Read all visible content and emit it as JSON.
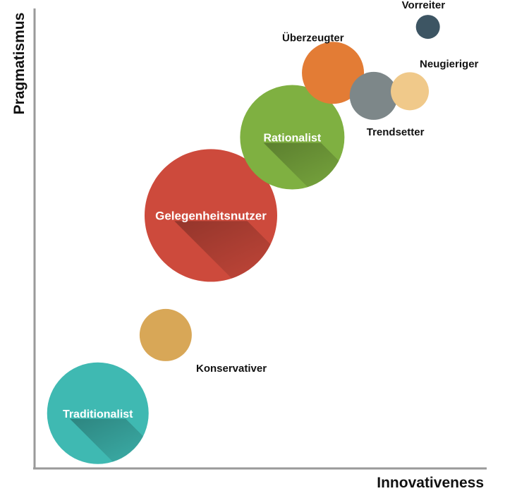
{
  "chart_data": {
    "type": "scatter",
    "title": "",
    "xlabel": "Innovativeness",
    "ylabel": "Pragmatismus",
    "grid": false,
    "legend": "none",
    "points": [
      {
        "label": "Traditionalist",
        "x": 1.4,
        "y": 1.2,
        "size": 72,
        "color": "#3fb9b2",
        "label_inside": true
      },
      {
        "label": "Konservativer",
        "x": 2.9,
        "y": 2.9,
        "size": 37,
        "color": "#d8a757",
        "label_inside": false
      },
      {
        "label": "Gelegenheitsnutzer",
        "x": 3.9,
        "y": 5.5,
        "size": 94,
        "color": "#cd4a3c",
        "label_inside": true
      },
      {
        "label": "Rationalist",
        "x": 5.7,
        "y": 7.2,
        "size": 74,
        "color": "#7fb041",
        "label_inside": true
      },
      {
        "label": "Überzeugter",
        "x": 6.6,
        "y": 8.6,
        "size": 44,
        "color": "#e37c35",
        "label_inside": false
      },
      {
        "label": "Trendsetter",
        "x": 7.5,
        "y": 8.1,
        "size": 34,
        "color": "#7d8789",
        "label_inside": false
      },
      {
        "label": "Neugieriger",
        "x": 8.3,
        "y": 8.2,
        "size": 27,
        "color": "#f0c98a",
        "label_inside": false
      },
      {
        "label": "Vorreiter",
        "x": 8.7,
        "y": 9.6,
        "size": 17,
        "color": "#3d5563",
        "label_inside": false
      }
    ]
  }
}
